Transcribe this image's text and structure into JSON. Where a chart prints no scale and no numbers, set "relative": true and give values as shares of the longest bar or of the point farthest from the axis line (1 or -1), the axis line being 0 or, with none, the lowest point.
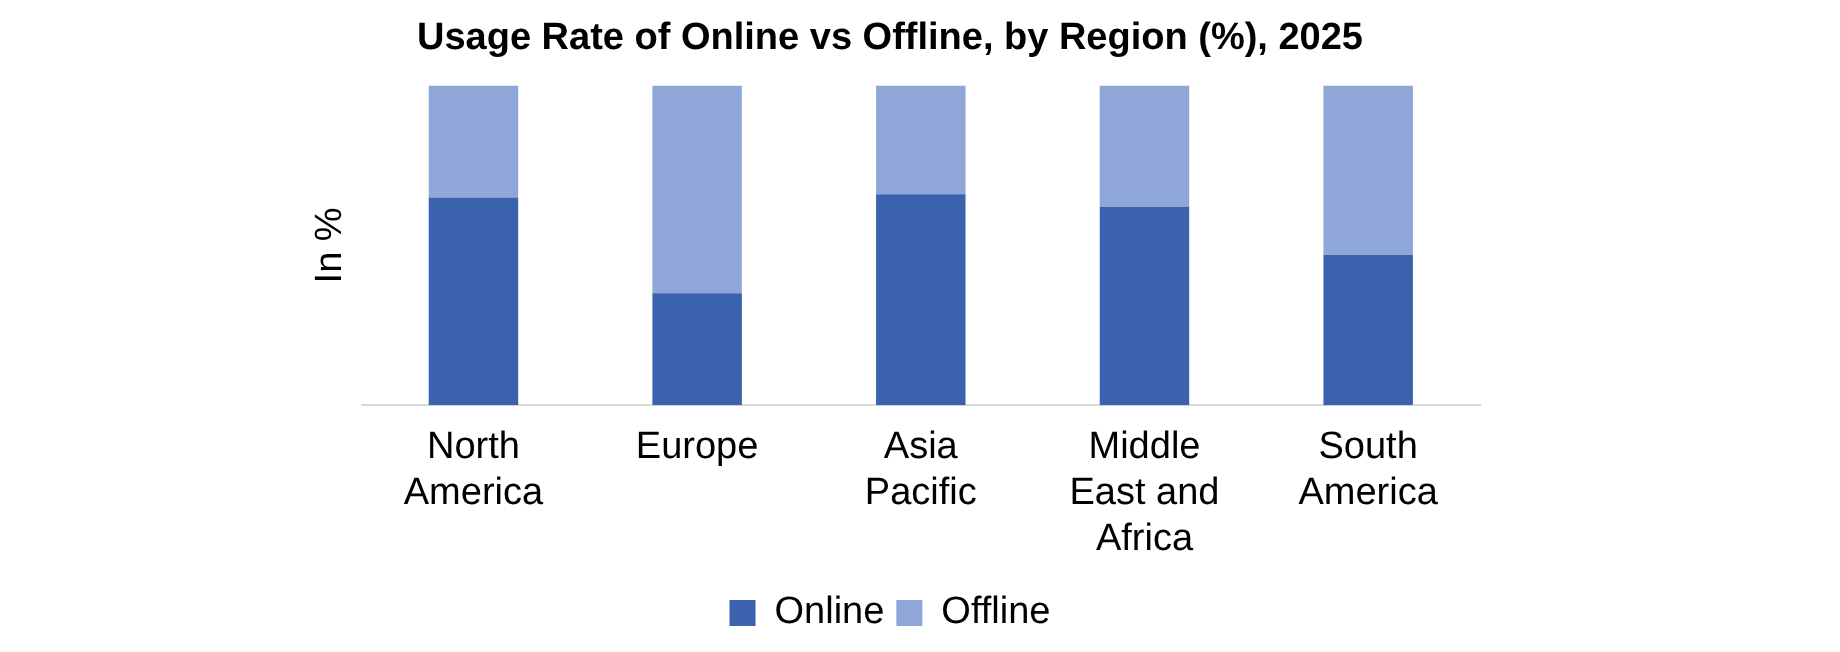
{
  "chart_data": {
    "type": "bar",
    "title": "Usage Rate of Online vs Offline, by Region (%), 2025",
    "ylabel": "In %",
    "relative": true,
    "stacked": true,
    "legend": "bottom",
    "grid": false,
    "categories": [
      "North America",
      "Europe",
      "Asia Pacific",
      "Middle East and Africa",
      "South America"
    ],
    "series": [
      {
        "name": "Online",
        "color": "#3a62ad",
        "values": [
          0.65,
          0.35,
          0.66,
          0.62,
          0.47
        ]
      },
      {
        "name": "Offline",
        "color": "#8fa7d8",
        "values": [
          0.35,
          0.65,
          0.34,
          0.38,
          0.53
        ]
      }
    ]
  }
}
